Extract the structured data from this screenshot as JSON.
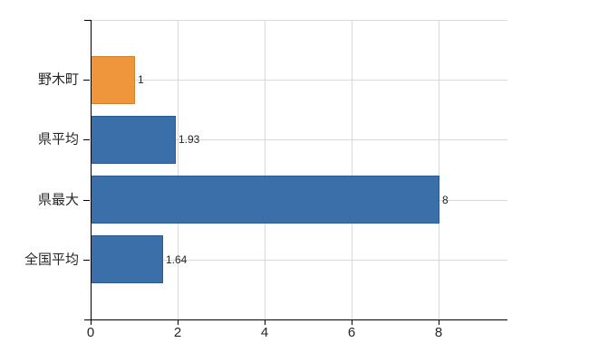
{
  "chart_data": {
    "type": "bar",
    "orientation": "horizontal",
    "title": "",
    "xlabel": "",
    "ylabel": "",
    "categories": [
      "野木町",
      "県平均",
      "県最大",
      "全国平均"
    ],
    "values": [
      1,
      1.93,
      8,
      1.64
    ],
    "value_labels": [
      "1",
      "1.93",
      "8",
      "1.64"
    ],
    "bar_colors": [
      "#ef963c",
      "#3b6fa9",
      "#3b6fa9",
      "#3b6fa9"
    ],
    "bar_border_colors": [
      "#d07f2c",
      "#2b5a91",
      "#2b5a91",
      "#2b5a91"
    ],
    "x_ticks": [
      {
        "label": "0",
        "value": 0
      },
      {
        "label": "2",
        "value": 2
      },
      {
        "label": "4",
        "value": 4
      },
      {
        "label": "6",
        "value": 6
      },
      {
        "label": "8",
        "value": 8
      }
    ],
    "xlim": [
      0,
      9.58
    ],
    "grid": true,
    "legend": null,
    "colors": {
      "grid": "#d9d9d9",
      "axis": "#000000",
      "text": "#262626",
      "background": "#ffffff"
    }
  }
}
